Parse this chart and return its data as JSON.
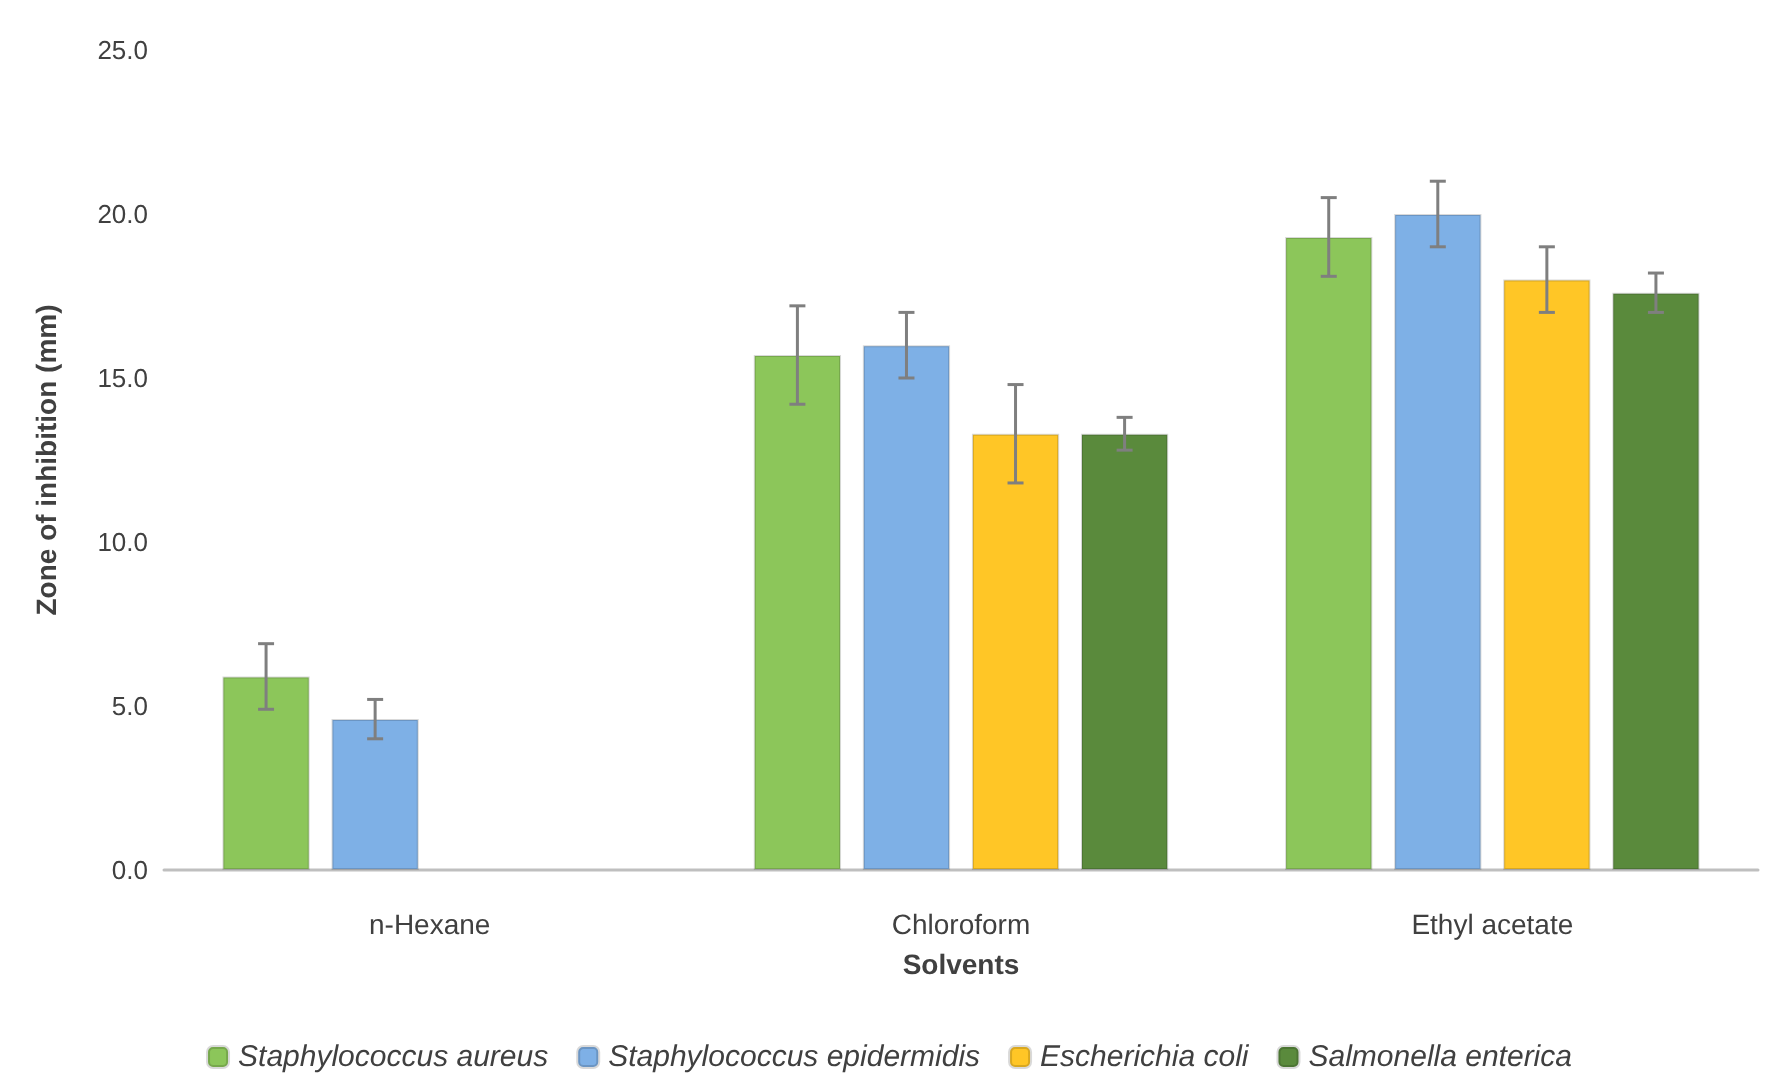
{
  "chart_data": {
    "type": "bar",
    "xlabel": "Solvents",
    "ylabel": "Zone of inhibition (mm)",
    "categories": [
      "n-Hexane",
      "Chloroform",
      "Ethyl acetate"
    ],
    "series": [
      {
        "name": "Staphylococcus aureus",
        "color": "#8cc65a",
        "values": [
          5.9,
          15.7,
          19.3
        ],
        "errors": [
          1.0,
          1.5,
          1.2
        ]
      },
      {
        "name": "Staphylococcus epidermidis",
        "color": "#7eb0e6",
        "values": [
          4.6,
          16.0,
          20.0
        ],
        "errors": [
          0.6,
          1.0,
          1.0
        ]
      },
      {
        "name": "Escherichia coli",
        "color": "#ffc626",
        "values": [
          null,
          13.3,
          18.0
        ],
        "errors": [
          null,
          1.5,
          1.0
        ]
      },
      {
        "name": "Salmonella enterica",
        "color": "#5a8a3c",
        "values": [
          null,
          13.3,
          17.6
        ],
        "errors": [
          null,
          0.5,
          0.6
        ]
      }
    ],
    "ylim": [
      0,
      25
    ],
    "yticks": [
      {
        "value": 0,
        "label": "0.0"
      },
      {
        "value": 5,
        "label": "5.0"
      },
      {
        "value": 10,
        "label": "10.0"
      },
      {
        "value": 15,
        "label": "15.0"
      },
      {
        "value": 20,
        "label": "20.0"
      },
      {
        "value": 25,
        "label": "25.0"
      }
    ],
    "grid": false,
    "legend": "bottom"
  }
}
